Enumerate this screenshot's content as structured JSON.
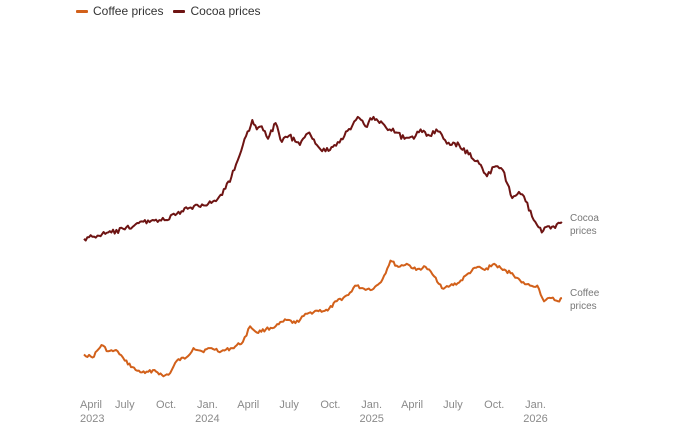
{
  "chart_data": {
    "type": "line",
    "title": "",
    "xlabel": "",
    "ylabel": "",
    "grid": false,
    "legend_position": "top-left",
    "x_range": [
      "2023-04-01",
      "2026-03-01"
    ],
    "x_ticks": [
      {
        "date": "2023-04-01",
        "line1": "April",
        "line2": "2023"
      },
      {
        "date": "2023-07-01",
        "line1": "July",
        "line2": ""
      },
      {
        "date": "2023-10-01",
        "line1": "Oct.",
        "line2": ""
      },
      {
        "date": "2024-01-01",
        "line1": "Jan.",
        "line2": "2024"
      },
      {
        "date": "2024-04-01",
        "line1": "April",
        "line2": ""
      },
      {
        "date": "2024-07-01",
        "line1": "July",
        "line2": ""
      },
      {
        "date": "2024-10-01",
        "line1": "Oct.",
        "line2": ""
      },
      {
        "date": "2025-01-01",
        "line1": "Jan.",
        "line2": "2025"
      },
      {
        "date": "2025-04-01",
        "line1": "April",
        "line2": ""
      },
      {
        "date": "2025-07-01",
        "line1": "July",
        "line2": ""
      },
      {
        "date": "2025-10-01",
        "line1": "Oct.",
        "line2": ""
      },
      {
        "date": "2026-01-01",
        "line1": "Jan.",
        "line2": "2026"
      }
    ],
    "y_range": [
      0,
      120
    ],
    "series": [
      {
        "name": "Coffee prices",
        "legend_label": "Coffee prices",
        "end_label": [
          "Coffee",
          "prices"
        ],
        "color": "#d2601a",
        "points": [
          [
            "2023-04-01",
            13
          ],
          [
            "2023-04-20",
            12
          ],
          [
            "2023-05-10",
            16
          ],
          [
            "2023-05-25",
            14
          ],
          [
            "2023-06-15",
            14
          ],
          [
            "2023-07-01",
            11
          ],
          [
            "2023-07-25",
            8
          ],
          [
            "2023-08-15",
            7
          ],
          [
            "2023-09-05",
            8
          ],
          [
            "2023-09-25",
            6
          ],
          [
            "2023-10-10",
            7
          ],
          [
            "2023-10-25",
            11
          ],
          [
            "2023-11-15",
            12
          ],
          [
            "2023-12-01",
            15
          ],
          [
            "2023-12-20",
            14
          ],
          [
            "2024-01-10",
            15
          ],
          [
            "2024-02-01",
            14
          ],
          [
            "2024-02-25",
            15
          ],
          [
            "2024-03-20",
            17
          ],
          [
            "2024-04-05",
            22
          ],
          [
            "2024-04-20",
            20
          ],
          [
            "2024-05-10",
            21
          ],
          [
            "2024-06-01",
            22
          ],
          [
            "2024-06-25",
            24
          ],
          [
            "2024-07-15",
            23
          ],
          [
            "2024-08-10",
            26
          ],
          [
            "2024-09-01",
            27
          ],
          [
            "2024-09-25",
            27
          ],
          [
            "2024-10-15",
            30
          ],
          [
            "2024-11-10",
            32
          ],
          [
            "2024-11-25",
            35
          ],
          [
            "2024-12-15",
            34
          ],
          [
            "2025-01-05",
            34
          ],
          [
            "2025-01-25",
            37
          ],
          [
            "2025-02-12",
            43
          ],
          [
            "2025-03-01",
            41
          ],
          [
            "2025-03-20",
            42
          ],
          [
            "2025-04-10",
            40
          ],
          [
            "2025-05-01",
            41
          ],
          [
            "2025-05-20",
            38
          ],
          [
            "2025-06-10",
            34
          ],
          [
            "2025-06-25",
            35
          ],
          [
            "2025-07-15",
            36
          ],
          [
            "2025-08-05",
            39
          ],
          [
            "2025-08-25",
            41
          ],
          [
            "2025-09-10",
            40
          ],
          [
            "2025-10-01",
            42
          ],
          [
            "2025-10-20",
            40
          ],
          [
            "2025-11-10",
            39
          ],
          [
            "2025-12-01",
            36
          ],
          [
            "2025-12-20",
            35
          ],
          [
            "2026-01-05",
            35
          ],
          [
            "2026-01-20",
            30
          ],
          [
            "2026-02-05",
            31
          ],
          [
            "2026-02-20",
            30
          ],
          [
            "2026-03-01",
            31
          ]
        ]
      },
      {
        "name": "Cocoa prices",
        "legend_label": "Cocoa prices",
        "end_label": [
          "Cocoa",
          "prices"
        ],
        "color": "#6e1413",
        "points": [
          [
            "2023-04-01",
            50
          ],
          [
            "2023-05-01",
            51
          ],
          [
            "2023-06-01",
            52
          ],
          [
            "2023-07-01",
            53
          ],
          [
            "2023-08-01",
            55
          ],
          [
            "2023-09-01",
            56
          ],
          [
            "2023-10-01",
            56
          ],
          [
            "2023-10-25",
            58
          ],
          [
            "2023-11-25",
            60
          ],
          [
            "2023-12-20",
            61
          ],
          [
            "2024-01-20",
            62
          ],
          [
            "2024-02-10",
            66
          ],
          [
            "2024-03-01",
            72
          ],
          [
            "2024-03-20",
            80
          ],
          [
            "2024-04-10",
            88
          ],
          [
            "2024-04-20",
            85
          ],
          [
            "2024-05-01",
            86
          ],
          [
            "2024-05-15",
            82
          ],
          [
            "2024-06-01",
            87
          ],
          [
            "2024-06-15",
            81
          ],
          [
            "2024-07-01",
            83
          ],
          [
            "2024-07-25",
            80
          ],
          [
            "2024-08-15",
            84
          ],
          [
            "2024-09-01",
            80
          ],
          [
            "2024-09-20",
            78
          ],
          [
            "2024-10-10",
            80
          ],
          [
            "2024-10-25",
            82
          ],
          [
            "2024-11-15",
            85
          ],
          [
            "2024-12-01",
            89
          ],
          [
            "2024-12-18",
            86
          ],
          [
            "2025-01-05",
            89
          ],
          [
            "2025-01-25",
            87
          ],
          [
            "2025-02-10",
            85
          ],
          [
            "2025-02-25",
            84
          ],
          [
            "2025-03-15",
            82
          ],
          [
            "2025-04-05",
            82
          ],
          [
            "2025-04-20",
            85
          ],
          [
            "2025-05-10",
            83
          ],
          [
            "2025-05-25",
            85
          ],
          [
            "2025-06-10",
            82
          ],
          [
            "2025-06-25",
            80
          ],
          [
            "2025-07-15",
            80
          ],
          [
            "2025-08-05",
            77
          ],
          [
            "2025-08-25",
            75
          ],
          [
            "2025-09-15",
            70
          ],
          [
            "2025-10-01",
            73
          ],
          [
            "2025-10-20",
            72
          ],
          [
            "2025-11-10",
            63
          ],
          [
            "2025-11-25",
            65
          ],
          [
            "2025-12-10",
            62
          ],
          [
            "2025-12-28",
            56
          ],
          [
            "2026-01-15",
            52
          ],
          [
            "2026-01-28",
            54
          ],
          [
            "2026-02-10",
            54
          ],
          [
            "2026-02-25",
            55
          ],
          [
            "2026-03-01",
            55
          ]
        ]
      }
    ]
  }
}
